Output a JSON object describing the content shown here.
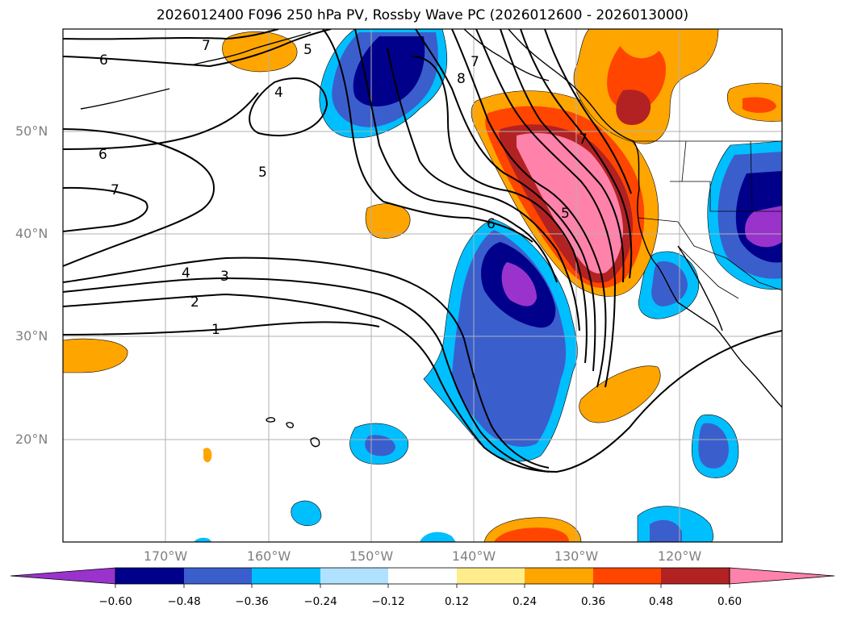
{
  "title": "2026012400 F096 250 hPa PV, Rossby Wave PC (2026012600 - 2026013000)",
  "map": {
    "lon_range": [
      -180,
      -110
    ],
    "lat_range": [
      10,
      60
    ],
    "lat_ticks": [
      "50°N",
      "40°N",
      "30°N",
      "20°N"
    ],
    "lon_ticks": [
      "170°W",
      "160°W",
      "150°W",
      "140°W",
      "130°W",
      "120°W"
    ],
    "grid": true
  },
  "contour_labels": [
    "7",
    "6",
    "5",
    "4",
    "8",
    "7",
    "6",
    "7",
    "5",
    "4",
    "3",
    "2",
    "1",
    "6",
    "7",
    "5"
  ],
  "colorbar": {
    "ticks": [
      "−0.60",
      "−0.48",
      "−0.36",
      "−0.24",
      "−0.12",
      "0.12",
      "0.24",
      "0.36",
      "0.48",
      "0.60"
    ],
    "colors": [
      "#9933cc",
      "#00008b",
      "#3a5fcd",
      "#00bfff",
      "#b0e2ff",
      "#ffffff",
      "#ffec8b",
      "#ffa500",
      "#ff4500",
      "#b22222",
      "#ff82ab"
    ]
  }
}
